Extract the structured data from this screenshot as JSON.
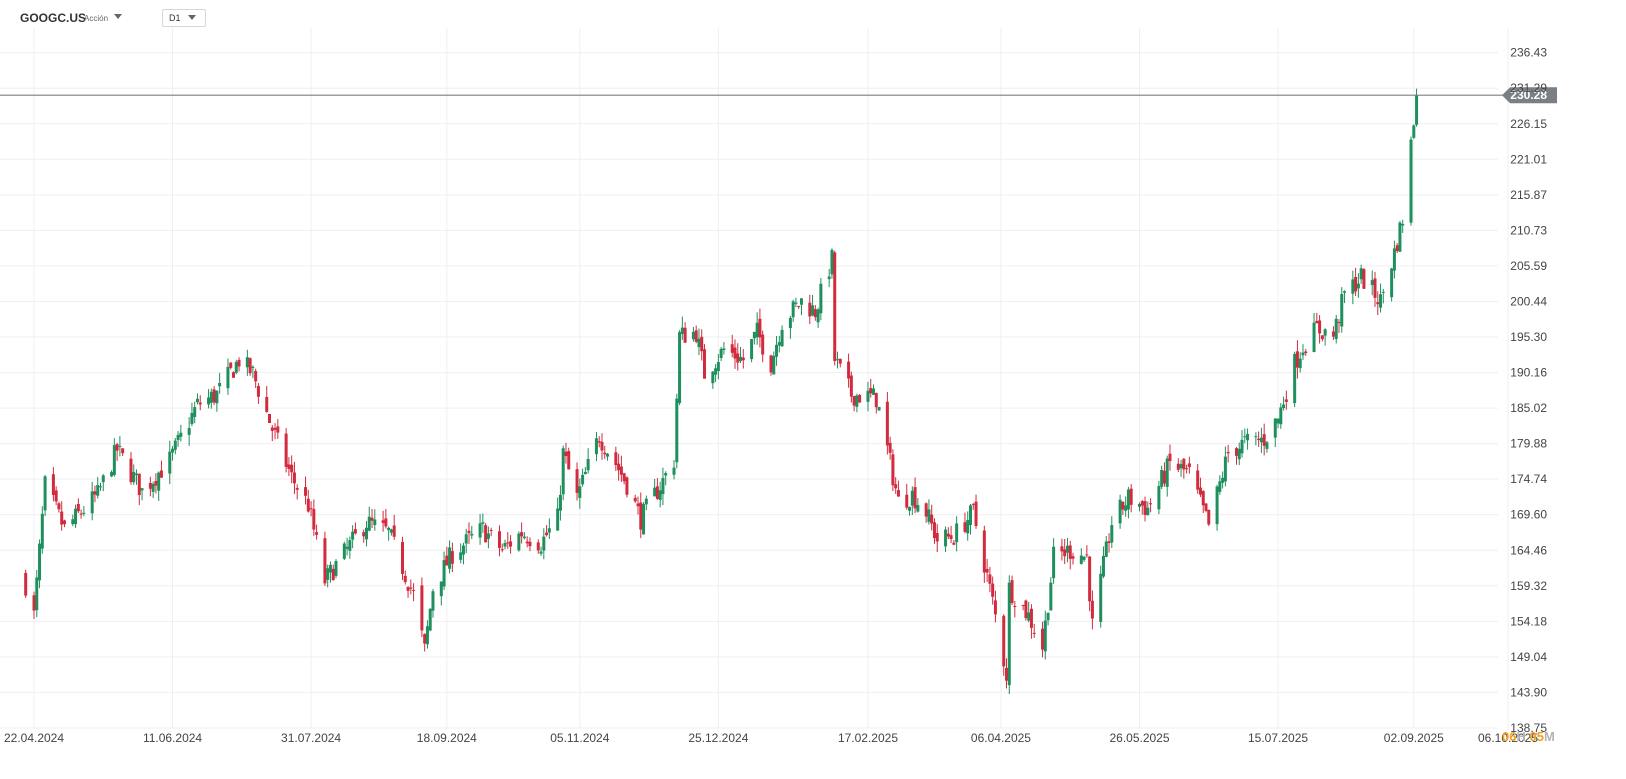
{
  "header": {
    "symbol": "GOOGC.US",
    "symbol_type": "Acción",
    "timeframe": "D1"
  },
  "countdown": {
    "hours": "06",
    "hours_unit": "H",
    "minutes": "05",
    "minutes_unit": "M"
  },
  "colors": {
    "up": "#1f8f5e",
    "down": "#d12b3d",
    "grid": "#efefef",
    "price_line": "#7a7f85",
    "price_tag": "#7a7f85"
  },
  "chart_data": {
    "type": "candlestick",
    "ylim": [
      138.75,
      240.0
    ],
    "yticks": [
      "236.43",
      "231.29",
      "226.15",
      "221.01",
      "215.87",
      "210.73",
      "205.59",
      "200.44",
      "195.30",
      "190.16",
      "185.02",
      "179.88",
      "174.74",
      "169.60",
      "164.46",
      "159.32",
      "154.18",
      "149.04",
      "143.90",
      "138.75"
    ],
    "xticks": [
      {
        "label": "22.04.2024",
        "date": "2024-04-22"
      },
      {
        "label": "11.06.2024",
        "date": "2024-06-11"
      },
      {
        "label": "31.07.2024",
        "date": "2024-07-31"
      },
      {
        "label": "18.09.2024",
        "date": "2024-09-18"
      },
      {
        "label": "05.11.2024",
        "date": "2024-11-05"
      },
      {
        "label": "25.12.2024",
        "date": "2024-12-25"
      },
      {
        "label": "17.02.2025",
        "date": "2025-02-17"
      },
      {
        "label": "06.04.2025",
        "date": "2025-04-06"
      },
      {
        "label": "26.05.2025",
        "date": "2025-05-26"
      },
      {
        "label": "15.07.2025",
        "date": "2025-07-15"
      },
      {
        "label": "02.09.2025",
        "date": "2025-09-02"
      },
      {
        "label": "06.10.2025",
        "date": "2025-10-06"
      }
    ],
    "last_price": "230.28",
    "grid": true,
    "anchors": [
      [
        "2024-04-19",
        159.5
      ],
      [
        "2024-04-22",
        155.0
      ],
      [
        "2024-04-26",
        173.8
      ],
      [
        "2024-05-03",
        167.5
      ],
      [
        "2024-05-15",
        172.5
      ],
      [
        "2024-05-22",
        179.0
      ],
      [
        "2024-05-31",
        173.0
      ],
      [
        "2024-06-10",
        177.5
      ],
      [
        "2024-06-20",
        185.5
      ],
      [
        "2024-06-27",
        187.0
      ],
      [
        "2024-07-05",
        192.0
      ],
      [
        "2024-07-10",
        190.0
      ],
      [
        "2024-07-17",
        182.0
      ],
      [
        "2024-07-24",
        175.0
      ],
      [
        "2024-07-30",
        171.0
      ],
      [
        "2024-08-05",
        160.0
      ],
      [
        "2024-08-12",
        164.0
      ],
      [
        "2024-08-20",
        168.5
      ],
      [
        "2024-08-28",
        167.0
      ],
      [
        "2024-09-06",
        158.0
      ],
      [
        "2024-09-10",
        150.0
      ],
      [
        "2024-09-13",
        159.0
      ],
      [
        "2024-09-20",
        164.0
      ],
      [
        "2024-10-01",
        167.5
      ],
      [
        "2024-10-08",
        164.5
      ],
      [
        "2024-10-15",
        167.0
      ],
      [
        "2024-10-22",
        165.5
      ],
      [
        "2024-10-28",
        169.0
      ],
      [
        "2024-10-30",
        178.5
      ],
      [
        "2024-11-04",
        172.0
      ],
      [
        "2024-11-12",
        181.0
      ],
      [
        "2024-11-18",
        177.0
      ],
      [
        "2024-11-22",
        174.0
      ],
      [
        "2024-11-27",
        169.0
      ],
      [
        "2024-12-05",
        174.5
      ],
      [
        "2024-12-09",
        177.5
      ],
      [
        "2024-12-11",
        195.5
      ],
      [
        "2024-12-17",
        196.0
      ],
      [
        "2024-12-20",
        190.0
      ],
      [
        "2024-12-27",
        193.5
      ],
      [
        "2025-01-03",
        192.0
      ],
      [
        "2025-01-08",
        196.0
      ],
      [
        "2025-01-13",
        191.5
      ],
      [
        "2025-01-17",
        197.5
      ],
      [
        "2025-01-24",
        200.5
      ],
      [
        "2025-01-29",
        199.0
      ],
      [
        "2025-02-04",
        206.5
      ],
      [
        "2025-02-05",
        192.0
      ],
      [
        "2025-02-11",
        187.0
      ],
      [
        "2025-02-20",
        186.5
      ],
      [
        "2025-02-28",
        171.5
      ],
      [
        "2025-03-05",
        172.5
      ],
      [
        "2025-03-10",
        170.0
      ],
      [
        "2025-03-14",
        166.0
      ],
      [
        "2025-03-20",
        166.5
      ],
      [
        "2025-03-27",
        170.0
      ],
      [
        "2025-04-03",
        157.0
      ],
      [
        "2025-04-08",
        146.5
      ],
      [
        "2025-04-09",
        159.0
      ],
      [
        "2025-04-16",
        155.0
      ],
      [
        "2025-04-21",
        150.5
      ],
      [
        "2025-04-25",
        163.5
      ],
      [
        "2025-05-01",
        164.5
      ],
      [
        "2025-05-07",
        163.5
      ],
      [
        "2025-05-09",
        153.5
      ],
      [
        "2025-05-16",
        168.5
      ],
      [
        "2025-05-22",
        172.0
      ],
      [
        "2025-05-29",
        170.5
      ],
      [
        "2025-06-06",
        177.0
      ],
      [
        "2025-06-13",
        175.5
      ],
      [
        "2025-06-20",
        168.0
      ],
      [
        "2025-06-27",
        178.5
      ],
      [
        "2025-07-03",
        180.0
      ],
      [
        "2025-07-10",
        180.5
      ],
      [
        "2025-07-15",
        183.5
      ],
      [
        "2025-07-21",
        191.5
      ],
      [
        "2025-07-24",
        194.0
      ],
      [
        "2025-07-29",
        196.5
      ],
      [
        "2025-08-04",
        195.5
      ],
      [
        "2025-08-08",
        201.5
      ],
      [
        "2025-08-14",
        204.0
      ],
      [
        "2025-08-21",
        200.5
      ],
      [
        "2025-08-26",
        207.5
      ],
      [
        "2025-08-29",
        212.5
      ],
      [
        "2025-09-03",
        230.28
      ]
    ]
  }
}
